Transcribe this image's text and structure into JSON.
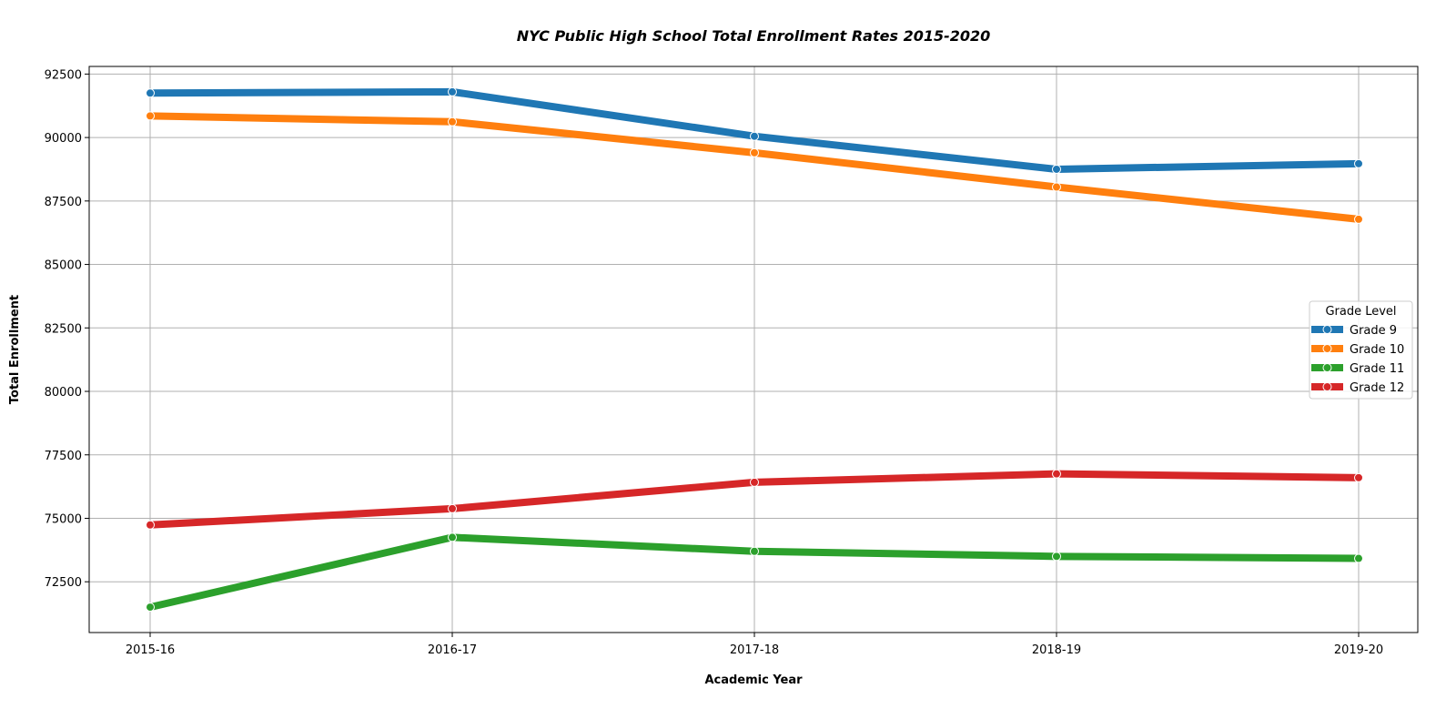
{
  "chart_data": {
    "type": "line",
    "title": "NYC Public High School Total Enrollment Rates 2015-2020",
    "xlabel": "Academic Year",
    "ylabel": "Total Enrollment",
    "categories": [
      "2015-16",
      "2016-17",
      "2017-18",
      "2018-19",
      "2019-20"
    ],
    "yticks": [
      72500,
      75000,
      77500,
      80000,
      82500,
      85000,
      87500,
      90000,
      92500
    ],
    "ylim": [
      70500,
      92800
    ],
    "grid": true,
    "legend": {
      "title": "Grade Level",
      "placement": "center-right"
    },
    "series": [
      {
        "name": "Grade 9",
        "color": "#1f77b4",
        "values": [
          91750,
          91800,
          90050,
          88750,
          88970
        ]
      },
      {
        "name": "Grade 10",
        "color": "#ff7f0e",
        "values": [
          90850,
          90620,
          89400,
          88050,
          86780
        ]
      },
      {
        "name": "Grade 11",
        "color": "#2ca02c",
        "values": [
          71500,
          74250,
          73700,
          73500,
          73420
        ]
      },
      {
        "name": "Grade 12",
        "color": "#d62728",
        "values": [
          74740,
          75380,
          76420,
          76750,
          76600
        ]
      }
    ]
  }
}
